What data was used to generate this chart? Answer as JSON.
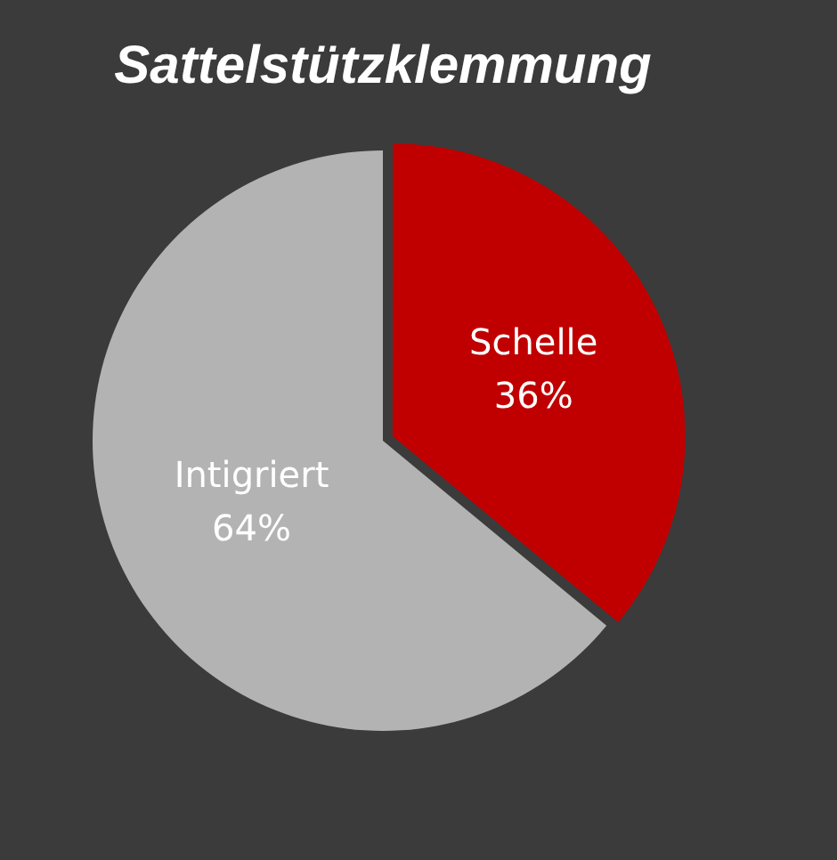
{
  "chart_data": {
    "type": "pie",
    "title": "Sattelstützklemmung",
    "categories": [
      "Schelle",
      "Intigriert"
    ],
    "values": [
      36,
      64
    ],
    "colors": [
      "#c00000",
      "#b3b3b3"
    ],
    "value_labels": [
      "36%",
      "64%"
    ],
    "legend": false
  }
}
